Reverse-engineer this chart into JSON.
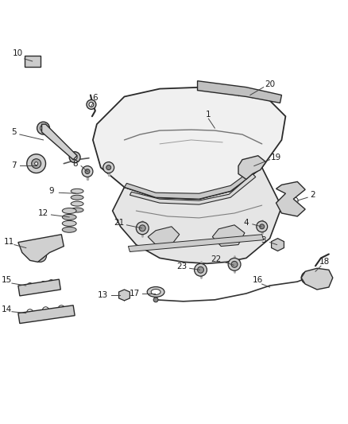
{
  "bg_color": "#ffffff",
  "line_color": "#2a2a2a",
  "label_color": "#1a1a1a",
  "figsize": [
    4.38,
    5.33
  ],
  "dpi": 100
}
